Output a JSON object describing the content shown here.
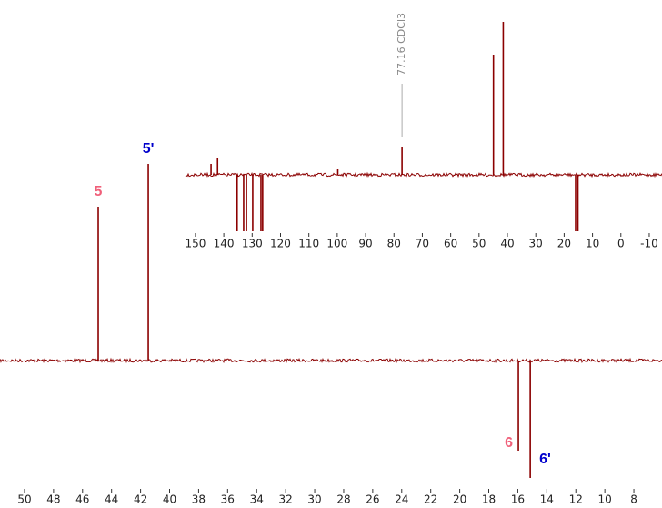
{
  "chart_data": [
    {
      "type": "spectrum",
      "color": "#8b0000",
      "x": [
        44.92,
        41.47,
        15.96,
        15.14
      ],
      "values": [
        169,
        216,
        -99,
        -129
      ],
      "labels": [
        "5",
        "5'",
        "6",
        "6'"
      ],
      "label_colors": [
        "#f0607a",
        "#0000cc",
        "#f0607a",
        "#0000cc"
      ],
      "xlim": [
        51.69,
        6.06
      ],
      "xticks": [
        50,
        48,
        46,
        44,
        42,
        40,
        38,
        36,
        34,
        32,
        30,
        28,
        26,
        24,
        22,
        20,
        18,
        16,
        14,
        12,
        10,
        8
      ],
      "ylim": [
        -140,
        230
      ]
    },
    {
      "type": "spectrum",
      "color": "#8b0000",
      "x": [
        144.5,
        142.2,
        99.8,
        77.16,
        44.92,
        41.47,
        135.3,
        133.0,
        132.0,
        129.8,
        126.9,
        126.3,
        15.96,
        15.14
      ],
      "values": [
        12,
        18,
        6,
        30,
        132,
        168,
        -62,
        -62,
        -62,
        -62,
        -62,
        -62,
        -62,
        -62
      ],
      "annotation": {
        "text": "77.16 CDCl3",
        "x": 77.16
      },
      "xlim": [
        153.5,
        -14.5
      ],
      "xticks": [
        150,
        140,
        130,
        120,
        110,
        100,
        90,
        80,
        70,
        60,
        50,
        40,
        30,
        20,
        10,
        0,
        -10
      ],
      "ylim": [
        -70,
        175
      ]
    }
  ]
}
